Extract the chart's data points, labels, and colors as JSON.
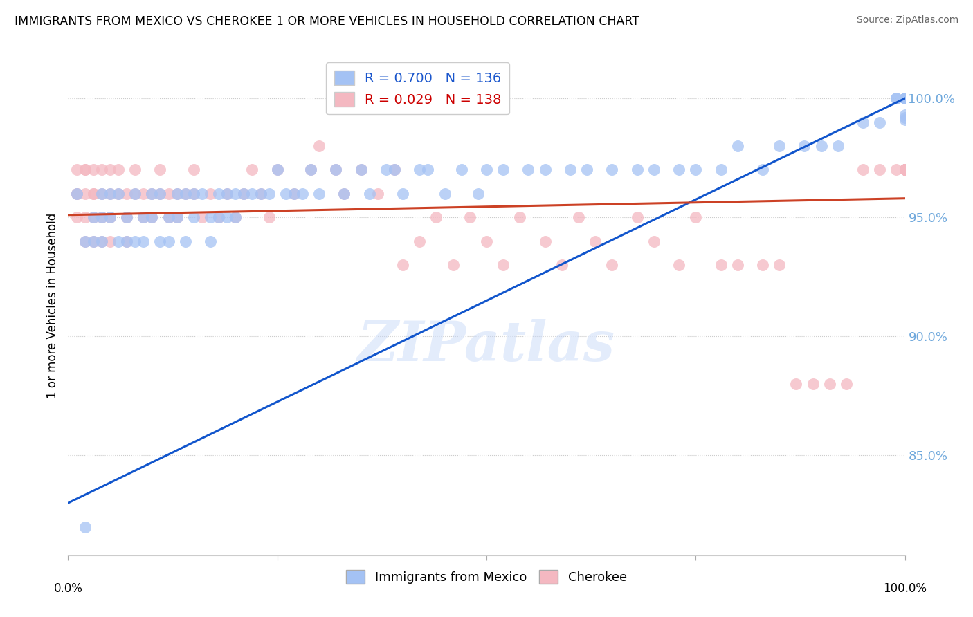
{
  "title": "IMMIGRANTS FROM MEXICO VS CHEROKEE 1 OR MORE VEHICLES IN HOUSEHOLD CORRELATION CHART",
  "source": "Source: ZipAtlas.com",
  "ylabel": "1 or more Vehicles in Household",
  "ytick_labels": [
    "85.0%",
    "90.0%",
    "95.0%",
    "100.0%"
  ],
  "ytick_values": [
    0.85,
    0.9,
    0.95,
    1.0
  ],
  "xlim": [
    0.0,
    1.0
  ],
  "ylim": [
    0.808,
    1.018
  ],
  "blue_color": "#a4c2f4",
  "pink_color": "#f4b8c1",
  "blue_line_color": "#1155cc",
  "pink_line_color": "#cc4125",
  "watermark": "ZIPatlas",
  "blue_line_y0": 0.83,
  "blue_line_y1": 1.0,
  "pink_line_y0": 0.951,
  "pink_line_y1": 0.958,
  "blue_scatter_x": [
    0.01,
    0.02,
    0.03,
    0.03,
    0.04,
    0.04,
    0.04,
    0.05,
    0.05,
    0.06,
    0.06,
    0.07,
    0.07,
    0.08,
    0.08,
    0.09,
    0.09,
    0.1,
    0.1,
    0.11,
    0.11,
    0.12,
    0.12,
    0.13,
    0.13,
    0.14,
    0.14,
    0.15,
    0.15,
    0.16,
    0.17,
    0.17,
    0.18,
    0.18,
    0.19,
    0.19,
    0.2,
    0.2,
    0.21,
    0.22,
    0.23,
    0.24,
    0.25,
    0.26,
    0.27,
    0.28,
    0.29,
    0.3,
    0.32,
    0.33,
    0.35,
    0.36,
    0.38,
    0.39,
    0.4,
    0.42,
    0.43,
    0.45,
    0.47,
    0.49,
    0.5,
    0.52,
    0.55,
    0.57,
    0.6,
    0.62,
    0.65,
    0.68,
    0.7,
    0.73,
    0.75,
    0.78,
    0.8,
    0.83,
    0.85,
    0.88,
    0.9,
    0.92,
    0.95,
    0.97,
    0.99,
    0.99,
    1.0,
    1.0,
    1.0,
    1.0,
    1.0,
    1.0,
    1.0,
    1.0,
    1.0,
    1.0,
    1.0,
    1.0,
    1.0,
    1.0,
    1.0,
    1.0,
    1.0,
    0.02
  ],
  "blue_scatter_y": [
    0.96,
    0.94,
    0.95,
    0.94,
    0.96,
    0.95,
    0.94,
    0.96,
    0.95,
    0.96,
    0.94,
    0.95,
    0.94,
    0.96,
    0.94,
    0.95,
    0.94,
    0.96,
    0.95,
    0.96,
    0.94,
    0.95,
    0.94,
    0.96,
    0.95,
    0.96,
    0.94,
    0.96,
    0.95,
    0.96,
    0.95,
    0.94,
    0.96,
    0.95,
    0.96,
    0.95,
    0.96,
    0.95,
    0.96,
    0.96,
    0.96,
    0.96,
    0.97,
    0.96,
    0.96,
    0.96,
    0.97,
    0.96,
    0.97,
    0.96,
    0.97,
    0.96,
    0.97,
    0.97,
    0.96,
    0.97,
    0.97,
    0.96,
    0.97,
    0.96,
    0.97,
    0.97,
    0.97,
    0.97,
    0.97,
    0.97,
    0.97,
    0.97,
    0.97,
    0.97,
    0.97,
    0.97,
    0.98,
    0.97,
    0.98,
    0.98,
    0.98,
    0.98,
    0.99,
    0.99,
    1.0,
    1.0,
    1.0,
    1.0,
    1.0,
    1.0,
    1.0,
    1.0,
    1.0,
    1.0,
    1.0,
    1.0,
    1.0,
    1.0,
    1.0,
    1.0,
    0.991,
    0.992,
    0.993,
    0.82
  ],
  "pink_scatter_x": [
    0.01,
    0.01,
    0.01,
    0.01,
    0.02,
    0.02,
    0.02,
    0.02,
    0.02,
    0.03,
    0.03,
    0.03,
    0.03,
    0.03,
    0.04,
    0.04,
    0.04,
    0.04,
    0.05,
    0.05,
    0.05,
    0.05,
    0.06,
    0.06,
    0.07,
    0.07,
    0.07,
    0.08,
    0.08,
    0.09,
    0.09,
    0.1,
    0.1,
    0.11,
    0.11,
    0.12,
    0.12,
    0.13,
    0.13,
    0.14,
    0.15,
    0.15,
    0.16,
    0.17,
    0.18,
    0.19,
    0.2,
    0.21,
    0.22,
    0.23,
    0.24,
    0.25,
    0.27,
    0.29,
    0.3,
    0.32,
    0.33,
    0.35,
    0.37,
    0.39,
    0.4,
    0.42,
    0.44,
    0.46,
    0.48,
    0.5,
    0.52,
    0.54,
    0.57,
    0.59,
    0.61,
    0.63,
    0.65,
    0.68,
    0.7,
    0.73,
    0.75,
    0.78,
    0.8,
    0.83,
    0.85,
    0.87,
    0.89,
    0.91,
    0.93,
    0.95,
    0.97,
    0.99,
    1.0,
    1.0,
    1.0,
    1.0,
    1.0,
    1.0,
    1.0,
    1.0,
    1.0,
    1.0,
    1.0,
    1.0
  ],
  "pink_scatter_y": [
    0.97,
    0.96,
    0.96,
    0.95,
    0.97,
    0.97,
    0.96,
    0.95,
    0.94,
    0.97,
    0.96,
    0.96,
    0.95,
    0.94,
    0.97,
    0.96,
    0.95,
    0.94,
    0.97,
    0.96,
    0.95,
    0.94,
    0.97,
    0.96,
    0.96,
    0.95,
    0.94,
    0.97,
    0.96,
    0.96,
    0.95,
    0.96,
    0.95,
    0.97,
    0.96,
    0.96,
    0.95,
    0.96,
    0.95,
    0.96,
    0.97,
    0.96,
    0.95,
    0.96,
    0.95,
    0.96,
    0.95,
    0.96,
    0.97,
    0.96,
    0.95,
    0.97,
    0.96,
    0.97,
    0.98,
    0.97,
    0.96,
    0.97,
    0.96,
    0.97,
    0.93,
    0.94,
    0.95,
    0.93,
    0.95,
    0.94,
    0.93,
    0.95,
    0.94,
    0.93,
    0.95,
    0.94,
    0.93,
    0.95,
    0.94,
    0.93,
    0.95,
    0.93,
    0.93,
    0.93,
    0.93,
    0.88,
    0.88,
    0.88,
    0.88,
    0.97,
    0.97,
    0.97,
    0.97,
    0.97,
    0.97,
    0.97,
    0.97,
    0.97,
    0.97,
    0.97,
    0.97,
    0.97,
    0.97,
    0.97
  ]
}
